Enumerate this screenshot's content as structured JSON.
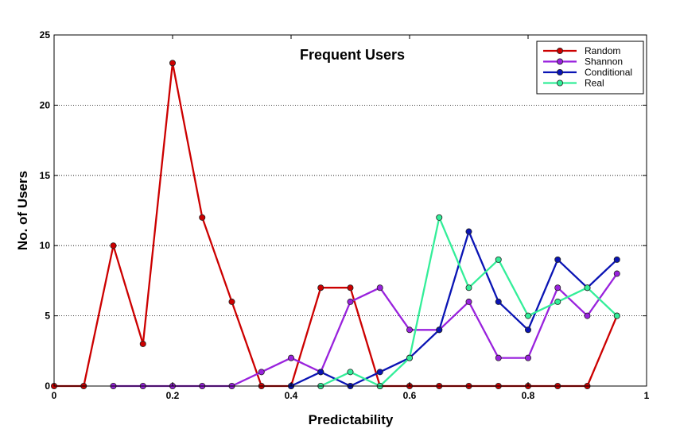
{
  "chart_data": {
    "type": "line",
    "title": "Frequent Users",
    "xlabel": "Predictability",
    "ylabel": "No. of Users",
    "xlim": [
      0,
      1
    ],
    "ylim": [
      0,
      25
    ],
    "xticks": [
      0,
      0.2,
      0.4,
      0.6,
      0.8,
      1
    ],
    "xtick_labels": [
      "0",
      "0.2",
      "0.4",
      "0.6",
      "0.8",
      "1"
    ],
    "yticks": [
      0,
      5,
      10,
      15,
      20,
      25
    ],
    "ytick_labels": [
      "0",
      "5",
      "10",
      "15",
      "20",
      "25"
    ],
    "grid": "horizontal dotted",
    "legend_position": "top-right",
    "series": [
      {
        "name": "Random",
        "color": "#cc0000",
        "x": [
          0,
          0.05,
          0.1,
          0.15,
          0.2,
          0.25,
          0.3,
          0.35,
          0.4,
          0.45,
          0.5,
          0.55,
          0.6,
          0.65,
          0.7,
          0.75,
          0.8,
          0.85,
          0.9,
          0.95
        ],
        "y": [
          0,
          0,
          10,
          3,
          23,
          12,
          6,
          0,
          0,
          7,
          7,
          0,
          0,
          0,
          0,
          0,
          0,
          0,
          0,
          5
        ]
      },
      {
        "name": "Shannon",
        "color": "#9922dd",
        "x": [
          0.1,
          0.15,
          0.2,
          0.25,
          0.3,
          0.35,
          0.4,
          0.45,
          0.5,
          0.55,
          0.6,
          0.65,
          0.7,
          0.75,
          0.8,
          0.85,
          0.9,
          0.95
        ],
        "y": [
          0,
          0,
          0,
          0,
          0,
          1,
          2,
          1,
          6,
          7,
          4,
          4,
          6,
          2,
          2,
          7,
          5,
          8
        ]
      },
      {
        "name": "Conditional",
        "color": "#0a14b4",
        "x": [
          0.4,
          0.45,
          0.5,
          0.55,
          0.6,
          0.65,
          0.7,
          0.75,
          0.8,
          0.85,
          0.9,
          0.95
        ],
        "y": [
          0,
          1,
          0,
          1,
          2,
          4,
          11,
          6,
          4,
          9,
          7,
          9
        ]
      },
      {
        "name": "Real",
        "color": "#33ee99",
        "x": [
          0.45,
          0.5,
          0.55,
          0.6,
          0.65,
          0.7,
          0.75,
          0.8,
          0.85,
          0.9,
          0.95
        ],
        "y": [
          0,
          1,
          0,
          2,
          12,
          7,
          9,
          5,
          6,
          7,
          5
        ]
      }
    ]
  }
}
